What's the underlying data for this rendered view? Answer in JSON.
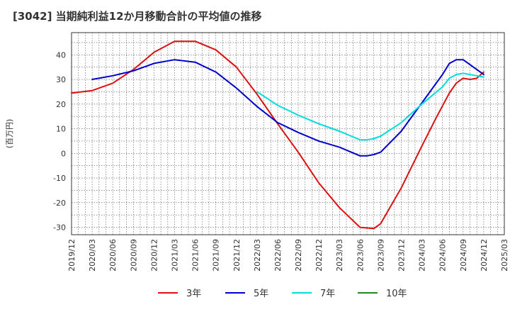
{
  "chart_data": {
    "type": "line",
    "title": "[3042]  当期純利益12か月移動合計の平均値の推移",
    "ylabel": "(百万円)",
    "xlabel": "",
    "ylim": [
      -33,
      49
    ],
    "yticks": [
      40,
      30,
      20,
      10,
      0,
      -10,
      -20,
      -30
    ],
    "xlim": [
      "2019-12",
      "2025-03"
    ],
    "xticks": [
      "2019/12",
      "2020/03",
      "2020/06",
      "2020/09",
      "2020/12",
      "2021/03",
      "2021/06",
      "2021/09",
      "2021/12",
      "2022/03",
      "2022/06",
      "2022/09",
      "2022/12",
      "2023/03",
      "2023/06",
      "2023/09",
      "2023/12",
      "2024/03",
      "2024/06",
      "2024/09",
      "2024/12",
      "2025/03"
    ],
    "grid": true,
    "legend_position": "bottom",
    "series": [
      {
        "name": "3年",
        "color": "#dd1111",
        "x": [
          "2019-12",
          "2020-03",
          "2020-06",
          "2020-09",
          "2020-12",
          "2021-03",
          "2021-06",
          "2021-09",
          "2021-12",
          "2022-03",
          "2022-06",
          "2022-09",
          "2022-12",
          "2023-03",
          "2023-06",
          "2023-08",
          "2023-09",
          "2023-12",
          "2024-03",
          "2024-05",
          "2024-07",
          "2024-08",
          "2024-09",
          "2024-10",
          "2024-11",
          "2024-12"
        ],
        "values": [
          24.5,
          25.5,
          28.5,
          34,
          41,
          45.5,
          45.5,
          42,
          35,
          24,
          12,
          0.5,
          -12,
          -22,
          -30,
          -30.5,
          -28.5,
          -14,
          3,
          14,
          24.5,
          28.5,
          30.5,
          30,
          30.5,
          33
        ]
      },
      {
        "name": "5年",
        "color": "#0000cc",
        "x": [
          "2020-03",
          "2020-06",
          "2020-09",
          "2020-12",
          "2021-03",
          "2021-06",
          "2021-09",
          "2021-12",
          "2022-03",
          "2022-06",
          "2022-09",
          "2022-12",
          "2023-03",
          "2023-06",
          "2023-07",
          "2023-08",
          "2023-09",
          "2023-12",
          "2024-03",
          "2024-06",
          "2024-07",
          "2024-08",
          "2024-09",
          "2024-12"
        ],
        "values": [
          30,
          31.5,
          33.5,
          36.5,
          38,
          37,
          33,
          26.5,
          19,
          12.5,
          8.5,
          5,
          2.5,
          -1,
          -1,
          -0.5,
          0.5,
          9,
          20.5,
          32,
          36.5,
          38,
          38,
          32
        ]
      },
      {
        "name": "7年",
        "color": "#00dddd",
        "x": [
          "2022-03",
          "2022-06",
          "2022-09",
          "2022-12",
          "2023-03",
          "2023-06",
          "2023-07",
          "2023-08",
          "2023-09",
          "2023-12",
          "2024-03",
          "2024-06",
          "2024-07",
          "2024-08",
          "2024-09",
          "2024-12"
        ],
        "values": [
          25,
          19.5,
          15.5,
          12,
          9,
          5.5,
          5.5,
          6,
          7,
          12.5,
          20,
          27,
          30.5,
          32,
          32.5,
          31
        ]
      },
      {
        "name": "10年",
        "color": "#228822",
        "x": [],
        "values": []
      }
    ]
  }
}
